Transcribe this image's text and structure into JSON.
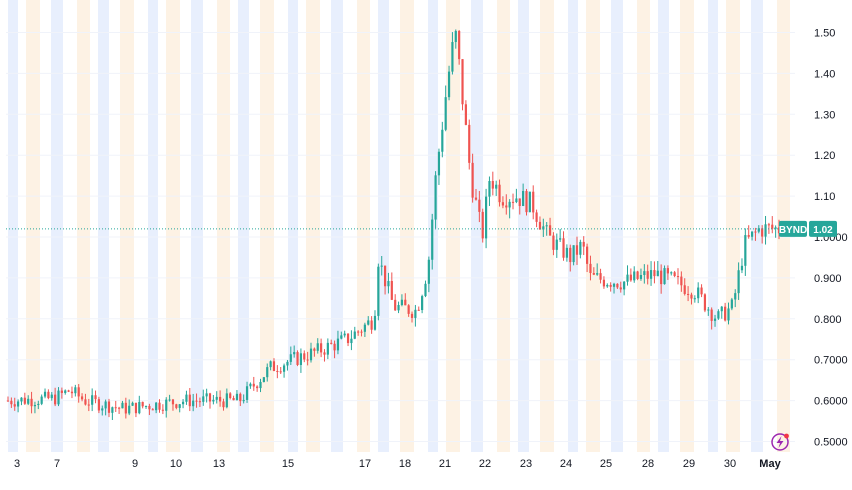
{
  "chart_data": {
    "type": "candlestick",
    "symbol": "BYND",
    "last_price_label": "1.02",
    "last_price": 1.02,
    "x_tick_labels": [
      "3",
      "7",
      "9",
      "10",
      "13",
      "15",
      "17",
      "18",
      "21",
      "22",
      "23",
      "24",
      "25",
      "28",
      "29",
      "30",
      "May"
    ],
    "y_tick_labels": [
      "1.50",
      "1.40",
      "1.30",
      "1.20",
      "1.10",
      "1.0000",
      "0.900",
      "0.800",
      "0.7000",
      "0.6000",
      "0.5000"
    ],
    "y_ticks": [
      1.5,
      1.4,
      1.3,
      1.2,
      1.1,
      1.0,
      0.9,
      0.8,
      0.7,
      0.6,
      0.5
    ],
    "ylim": [
      0.47,
      1.56
    ],
    "grid": true,
    "background_bands": "alternating blue and orange session shading",
    "series": [
      {
        "name": "BYND",
        "anchors": [
          [
            0,
            0.6
          ],
          [
            0.06,
            0.605
          ],
          [
            0.08,
            0.625
          ],
          [
            0.1,
            0.6
          ],
          [
            0.15,
            0.58
          ],
          [
            0.23,
            0.6
          ],
          [
            0.3,
            0.6
          ],
          [
            0.34,
            0.68
          ],
          [
            0.4,
            0.72
          ],
          [
            0.44,
            0.75
          ],
          [
            0.475,
            0.8
          ],
          [
            0.48,
            0.95
          ],
          [
            0.5,
            0.83
          ],
          [
            0.53,
            0.82
          ],
          [
            0.545,
            0.93
          ],
          [
            0.555,
            1.15
          ],
          [
            0.57,
            1.38
          ],
          [
            0.58,
            1.5
          ],
          [
            0.585,
            1.42
          ],
          [
            0.6,
            1.15
          ],
          [
            0.615,
            1.0
          ],
          [
            0.625,
            1.15
          ],
          [
            0.64,
            1.1
          ],
          [
            0.66,
            1.1
          ],
          [
            0.68,
            1.08
          ],
          [
            0.7,
            1.0
          ],
          [
            0.73,
            0.95
          ],
          [
            0.745,
            0.98
          ],
          [
            0.755,
            0.9
          ],
          [
            0.8,
            0.89
          ],
          [
            0.84,
            0.91
          ],
          [
            0.89,
            0.87
          ],
          [
            0.92,
            0.8
          ],
          [
            0.94,
            0.83
          ],
          [
            0.955,
            0.98
          ],
          [
            0.975,
            1.02
          ],
          [
            1.0,
            1.02
          ]
        ]
      }
    ],
    "colors": {
      "up": "#26a69a",
      "down": "#ef5350",
      "band_blue": "#e8effd",
      "band_orange": "#fdf2e4",
      "axis_text": "#131722",
      "price_line": "#26a69a"
    },
    "watermark_icon": "lightning-badge-icon"
  }
}
